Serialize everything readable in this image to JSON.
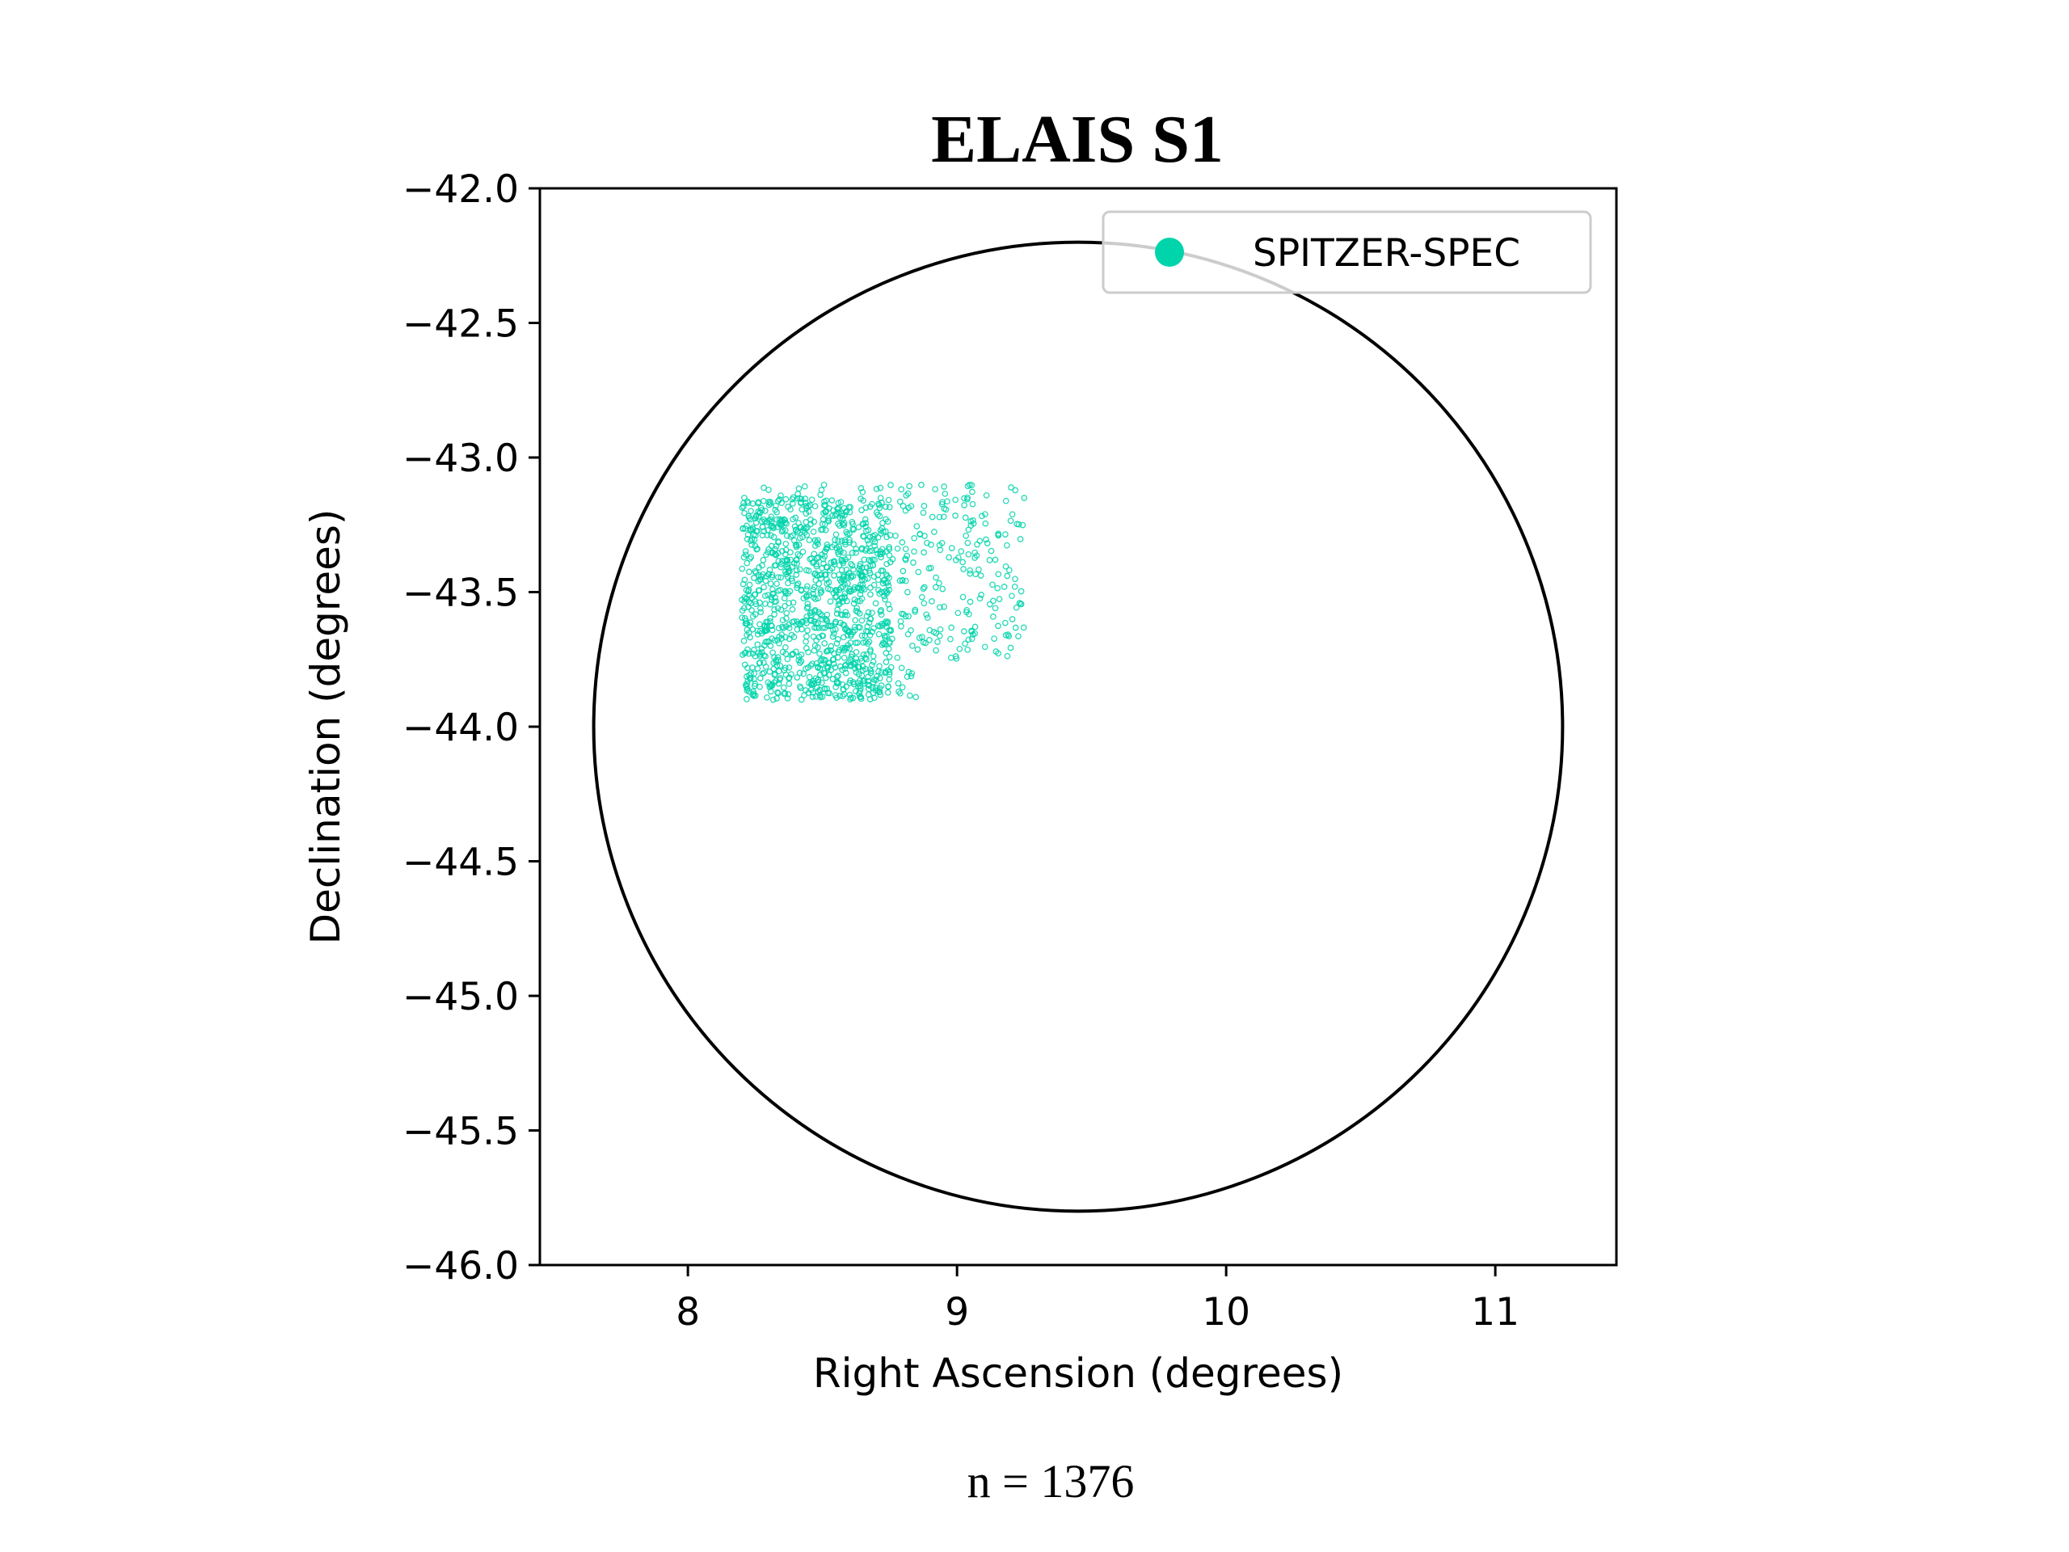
{
  "chart_data": {
    "type": "scatter",
    "title": "ELAIS S1",
    "xlabel": "Right Ascension (degrees)",
    "ylabel": "Declination (degrees)",
    "xlim": [
      7.45,
      11.45
    ],
    "ylim": [
      -46.0,
      -42.0
    ],
    "x_ticks": [
      8,
      9,
      10,
      11
    ],
    "x_tick_labels": [
      "8",
      "9",
      "10",
      "11"
    ],
    "y_ticks": [
      -42.0,
      -42.5,
      -43.0,
      -43.5,
      -44.0,
      -44.5,
      -45.0,
      -45.5,
      -46.0
    ],
    "y_tick_labels": [
      "−42.0",
      "−42.5",
      "−43.0",
      "−43.5",
      "−44.0",
      "−44.5",
      "−45.0",
      "−45.5",
      "−46.0"
    ],
    "grid": false,
    "legend_position": "top-right",
    "series": [
      {
        "name": "SPITZER-SPEC",
        "color": "#00d4aa",
        "count": 1376,
        "region": {
          "ra_range": [
            8.2,
            9.25
          ],
          "dec_range": [
            -43.9,
            -43.1
          ],
          "dense_ra_range": [
            8.2,
            8.75
          ],
          "dense_dec_range": [
            -43.9,
            -43.15
          ],
          "notch_ra_min": 8.85,
          "notch_dec_max": -43.75
        }
      }
    ],
    "circle": {
      "center_ra": 9.45,
      "center_dec": -44.0,
      "radius_deg": 1.8,
      "color": "#000000"
    }
  },
  "caption": "n = 1376"
}
